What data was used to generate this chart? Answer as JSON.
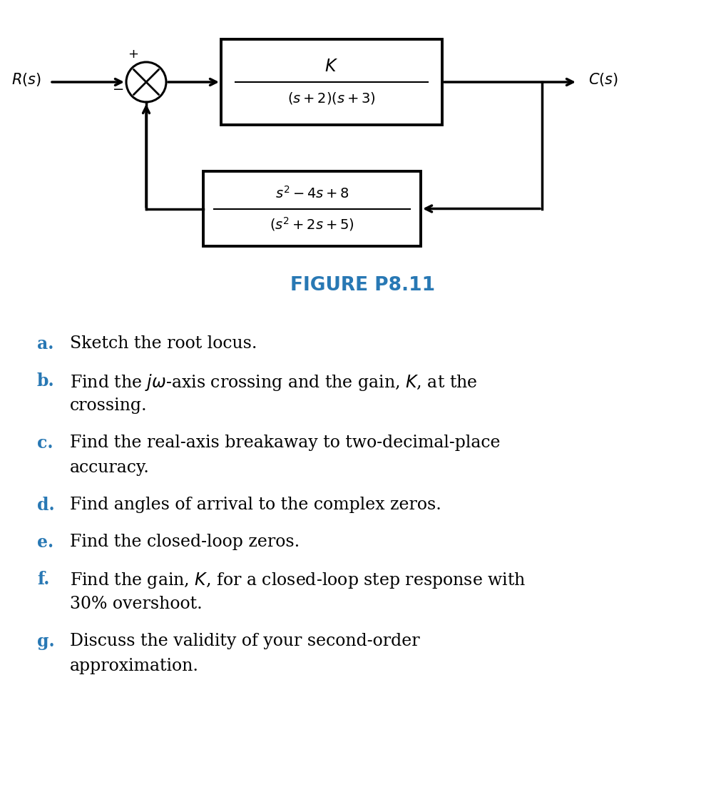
{
  "bg_color": "#ffffff",
  "figure_label": "FIGURE P8.11",
  "figure_label_color": "#2878b4",
  "items": [
    {
      "letter": "a.",
      "line1": "Sketch the root locus.",
      "line2": null
    },
    {
      "letter": "b.",
      "line1": "Find the $j\\omega$-axis crossing and the gain, $K$, at the",
      "line2": "crossing."
    },
    {
      "letter": "c.",
      "line1": "Find the real-axis breakaway to two-decimal-place",
      "line2": "accuracy."
    },
    {
      "letter": "d.",
      "line1": "Find angles of arrival to the complex zeros.",
      "line2": null
    },
    {
      "letter": "e.",
      "line1": "Find the closed-loop zeros.",
      "line2": null
    },
    {
      "letter": "f.",
      "line1": "Find the gain, $K$, for a closed-loop step response with",
      "line2": "30% overshoot."
    },
    {
      "letter": "g.",
      "line1": "Discuss the validity of your second-order",
      "line2": "approximation."
    }
  ]
}
